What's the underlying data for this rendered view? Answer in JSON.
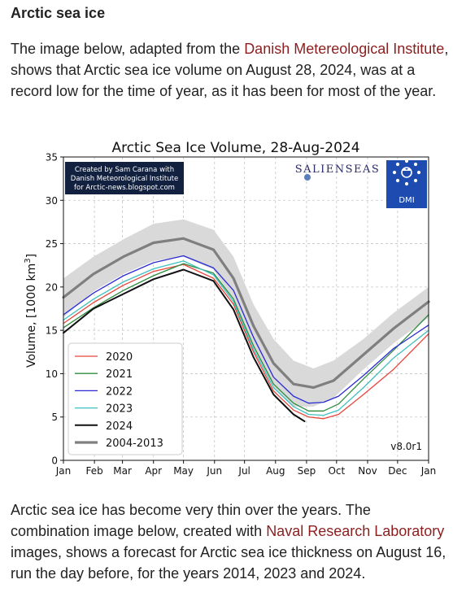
{
  "article": {
    "heading": "Arctic sea ice",
    "para1": {
      "before": "The image below, adapted from the ",
      "link": "Danish Metereological Institute",
      "after": ", shows that Arctic sea ice volume on August 28, 2024, was at a record low for the time of year, as it has been for most of the year."
    },
    "para2": {
      "before": "Arctic sea ice has become very thin over the years. The combination image below, created with ",
      "link": "Naval Research Laboratory",
      "after": " images, shows a forecast for Arctic sea ice thickness on August 16, run the day before, for the years 2014, 2023 and 2024."
    }
  },
  "chart_data": {
    "type": "line",
    "title": "Arctic Sea Ice Volume, 28-Aug-2024",
    "ylabel_prefix": "Volume, [1000 km",
    "ylabel_sup": "3",
    "ylabel_suffix": "]",
    "ylim": [
      0,
      35
    ],
    "yticks": [
      0,
      5,
      10,
      15,
      20,
      25,
      30,
      35
    ],
    "xlim": [
      0,
      365
    ],
    "xticks": [
      {
        "label": "Jan",
        "day": 0
      },
      {
        "label": "Feb",
        "day": 31
      },
      {
        "label": "Mar",
        "day": 59
      },
      {
        "label": "Apr",
        "day": 90
      },
      {
        "label": "May",
        "day": 120
      },
      {
        "label": "Jun",
        "day": 151
      },
      {
        "label": "Jul",
        "day": 181
      },
      {
        "label": "Aug",
        "day": 212
      },
      {
        "label": "Sep",
        "day": 243
      },
      {
        "label": "Oct",
        "day": 273
      },
      {
        "label": "Nov",
        "day": 304
      },
      {
        "label": "Dec",
        "day": 334
      },
      {
        "label": "Jan",
        "day": 365
      }
    ],
    "grid": true,
    "legend_position": "lower-left",
    "credit_lines": [
      "Created by Sam Carana with",
      "Danish Meteorological Institute",
      "for Arctic-news.blogspot.com"
    ],
    "salienseas_text": "SALIENSEAS",
    "dmi_text": "DMI",
    "version_text": "v8.0r1",
    "band": {
      "x": [
        0,
        30,
        60,
        90,
        120,
        150,
        170,
        190,
        210,
        230,
        250,
        270,
        300,
        330,
        365
      ],
      "low": [
        16.5,
        19.5,
        21.5,
        23,
        23.5,
        22,
        18.5,
        13,
        8.5,
        6.2,
        6.2,
        7.2,
        10.5,
        13.5,
        16.5
      ],
      "high": [
        21,
        23.5,
        25.5,
        27.3,
        27.8,
        26.6,
        23.5,
        18,
        14,
        11.5,
        10.6,
        11.5,
        14,
        17,
        20
      ]
    },
    "series": [
      {
        "name": "2020",
        "color": "#e8453c",
        "width": 1.3,
        "x": [
          0,
          30,
          60,
          90,
          120,
          150,
          170,
          190,
          210,
          230,
          245,
          260,
          275,
          300,
          330,
          365
        ],
        "y": [
          15.8,
          18.2,
          20.2,
          21.8,
          22.6,
          21,
          18,
          12.5,
          8,
          5.8,
          5,
          4.8,
          5.3,
          7.6,
          10.5,
          14.6
        ]
      },
      {
        "name": "2021",
        "color": "#2e8b3e",
        "width": 1.3,
        "x": [
          0,
          30,
          60,
          90,
          120,
          150,
          170,
          190,
          210,
          230,
          245,
          260,
          275,
          300,
          330,
          365
        ],
        "y": [
          15.3,
          17.6,
          19.6,
          21.3,
          22.7,
          21.6,
          18.6,
          13.2,
          8.8,
          6.6,
          5.7,
          5.7,
          6.5,
          9.4,
          12.7,
          16.8
        ]
      },
      {
        "name": "2022",
        "color": "#2a2ad4",
        "width": 1.3,
        "x": [
          0,
          30,
          60,
          90,
          120,
          150,
          170,
          190,
          210,
          230,
          245,
          260,
          275,
          300,
          330,
          365
        ],
        "y": [
          16.8,
          19.3,
          21.3,
          22.8,
          23.6,
          22.2,
          19.6,
          14.2,
          9.6,
          7.4,
          6.6,
          6.7,
          7.4,
          9.8,
          12.9,
          15.6
        ]
      },
      {
        "name": "2023",
        "color": "#3fbfbf",
        "width": 1.3,
        "x": [
          0,
          30,
          60,
          90,
          120,
          150,
          170,
          190,
          210,
          230,
          245,
          260,
          275,
          300,
          330,
          365
        ],
        "y": [
          16.2,
          18.6,
          20.6,
          22.1,
          23,
          21.4,
          18.3,
          12.8,
          8.4,
          6.2,
          5.3,
          5.2,
          5.8,
          8.4,
          11.8,
          15
        ]
      },
      {
        "name": "2024",
        "color": "#111111",
        "width": 2,
        "x": [
          0,
          30,
          60,
          90,
          120,
          150,
          170,
          190,
          210,
          230,
          241
        ],
        "y": [
          14.7,
          17.5,
          19.2,
          20.9,
          22,
          20.7,
          17.4,
          11.9,
          7.6,
          5.3,
          4.5
        ]
      },
      {
        "name": "2004-2013",
        "color": "#7f7f7f",
        "width": 3.2,
        "x": [
          0,
          30,
          60,
          90,
          120,
          150,
          170,
          190,
          210,
          230,
          250,
          270,
          300,
          330,
          365
        ],
        "y": [
          18.8,
          21.5,
          23.5,
          25.1,
          25.6,
          24.3,
          21,
          15.5,
          11.2,
          8.8,
          8.4,
          9.2,
          12.2,
          15.2,
          18.3
        ]
      }
    ]
  }
}
